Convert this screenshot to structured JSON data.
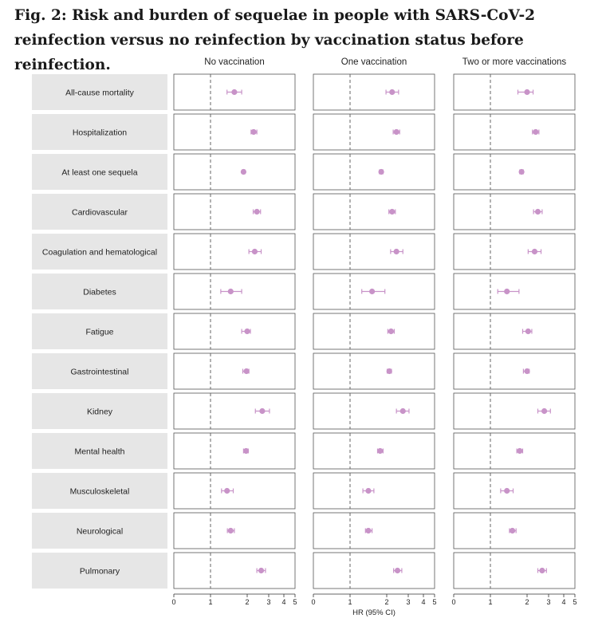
{
  "figure_title": "Fig. 2: Risk and burden of sequelae in people with SARS-CoV-2 reinfection versus no reinfection by vaccination status before reinfection.",
  "chart_data": {
    "type": "forest",
    "columns": [
      "No vaccination",
      "One vaccination",
      "Two or more vaccinations"
    ],
    "rows": [
      "All-cause mortality",
      "Hospitalization",
      "At least one sequela",
      "Cardiovascular",
      "Coagulation and hematological",
      "Diabetes",
      "Fatigue",
      "Gastrointestinal",
      "Kidney",
      "Mental health",
      "Musculoskeletal",
      "Neurological",
      "Pulmonary"
    ],
    "x_axis": {
      "label": "HR (95% CI)",
      "ticks": [
        0,
        1,
        2,
        3,
        4,
        5
      ],
      "tick_labels": [
        "0",
        "1",
        "2",
        "3",
        "4",
        "5"
      ],
      "reference_line": 1
    },
    "series": [
      {
        "column": "No vaccination",
        "hr": [
          1.65,
          2.3,
          1.9,
          2.45,
          2.35,
          1.55,
          2.0,
          1.98,
          2.7,
          1.97,
          1.45,
          1.55,
          2.65
        ],
        "lower": [
          1.45,
          2.18,
          1.86,
          2.28,
          2.08,
          1.28,
          1.85,
          1.88,
          2.38,
          1.9,
          1.3,
          1.46,
          2.45
        ],
        "upper": [
          1.85,
          2.45,
          1.94,
          2.62,
          2.65,
          1.85,
          2.15,
          2.08,
          3.05,
          2.05,
          1.62,
          1.65,
          2.85
        ]
      },
      {
        "column": "One vaccination",
        "hr": [
          2.25,
          2.45,
          1.85,
          2.25,
          2.45,
          1.6,
          2.2,
          2.12,
          2.75,
          1.82,
          1.5,
          1.5,
          2.5
        ],
        "lower": [
          1.98,
          2.3,
          1.8,
          2.1,
          2.18,
          1.32,
          2.05,
          2.02,
          2.45,
          1.75,
          1.35,
          1.42,
          2.32
        ],
        "upper": [
          2.55,
          2.6,
          1.9,
          2.4,
          2.75,
          1.95,
          2.35,
          2.22,
          3.05,
          1.9,
          1.65,
          1.6,
          2.7
        ]
      },
      {
        "column": "Two or more vaccinations",
        "hr": [
          2.0,
          2.4,
          1.85,
          2.5,
          2.35,
          1.45,
          2.05,
          2.0,
          2.8,
          1.8,
          1.45,
          1.6,
          2.7
        ],
        "lower": [
          1.75,
          2.25,
          1.8,
          2.3,
          2.05,
          1.2,
          1.88,
          1.9,
          2.5,
          1.72,
          1.28,
          1.52,
          2.5
        ],
        "upper": [
          2.28,
          2.55,
          1.9,
          2.7,
          2.65,
          1.78,
          2.22,
          2.1,
          3.12,
          1.88,
          1.62,
          1.7,
          2.9
        ]
      }
    ],
    "colors": {
      "marker": "#c893c8",
      "ci": "#c893c8",
      "label_bg": "#e6e6e6",
      "panel_border": "#555555",
      "reference": "#666666"
    }
  }
}
